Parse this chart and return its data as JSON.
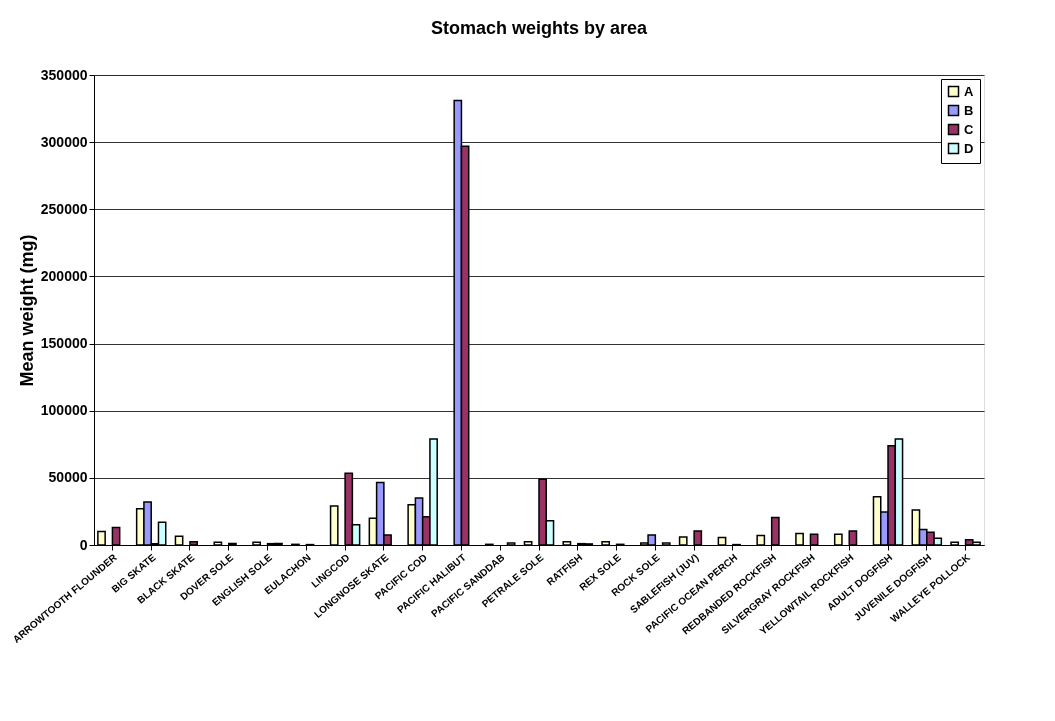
{
  "chart_data": {
    "type": "bar",
    "title": "Stomach weights by area",
    "ylabel": "Mean weight (mg)",
    "categories": [
      "ARROWTOOTH FLOUNDER",
      "BIG SKATE",
      "BLACK SKATE",
      "DOVER SOLE",
      "ENGLISH SOLE",
      "EULACHON",
      "LINGCOD",
      "LONGNOSE SKATE",
      "PACIFIC COD",
      "PACIFIC HALIBUT",
      "PACIFIC SANDDAB",
      "PETRALE SOLE",
      "RATFISH",
      "REX SOLE",
      "ROCK SOLE",
      "SABLEFISH (JUV)",
      "PACIFIC OCEAN PERCH",
      "REDBANDED ROCKFISH",
      "SILVERGRAY ROCKFISH",
      "YELLOWTAIL ROCKFISH",
      "ADULT DOGFISH",
      "JUVENILE DOGFISH",
      "WALLEYE POLLOCK"
    ],
    "series": [
      {
        "name": "A",
        "color": "#ffffcc",
        "values": [
          10000,
          27000,
          6500,
          2000,
          2000,
          500,
          29000,
          20000,
          30000,
          null,
          500,
          2500,
          2500,
          2500,
          1500,
          6000,
          5500,
          7000,
          8500,
          8000,
          36000,
          26000,
          2000
        ]
      },
      {
        "name": "B",
        "color": "#9999ff",
        "values": [
          null,
          32000,
          null,
          null,
          null,
          null,
          null,
          46500,
          35000,
          331000,
          null,
          null,
          null,
          null,
          7500,
          null,
          null,
          null,
          null,
          null,
          24500,
          11500,
          null
        ]
      },
      {
        "name": "C",
        "color": "#993366",
        "values": [
          13000,
          1000,
          2500,
          1200,
          1000,
          300,
          53500,
          7500,
          21000,
          297000,
          null,
          49000,
          1000,
          500,
          null,
          10500,
          300,
          20500,
          8000,
          10500,
          74000,
          9500,
          4000
        ]
      },
      {
        "name": "D",
        "color": "#ccffff",
        "values": [
          null,
          17000,
          null,
          null,
          1200,
          null,
          15000,
          null,
          79000,
          null,
          1500,
          18000,
          800,
          null,
          1500,
          null,
          null,
          null,
          null,
          null,
          79000,
          5000,
          2000
        ]
      }
    ],
    "ylim": [
      0,
      350000
    ],
    "yticks": [
      0,
      50000,
      100000,
      150000,
      200000,
      250000,
      300000,
      350000
    ],
    "grid": "y",
    "legend": "top right"
  }
}
